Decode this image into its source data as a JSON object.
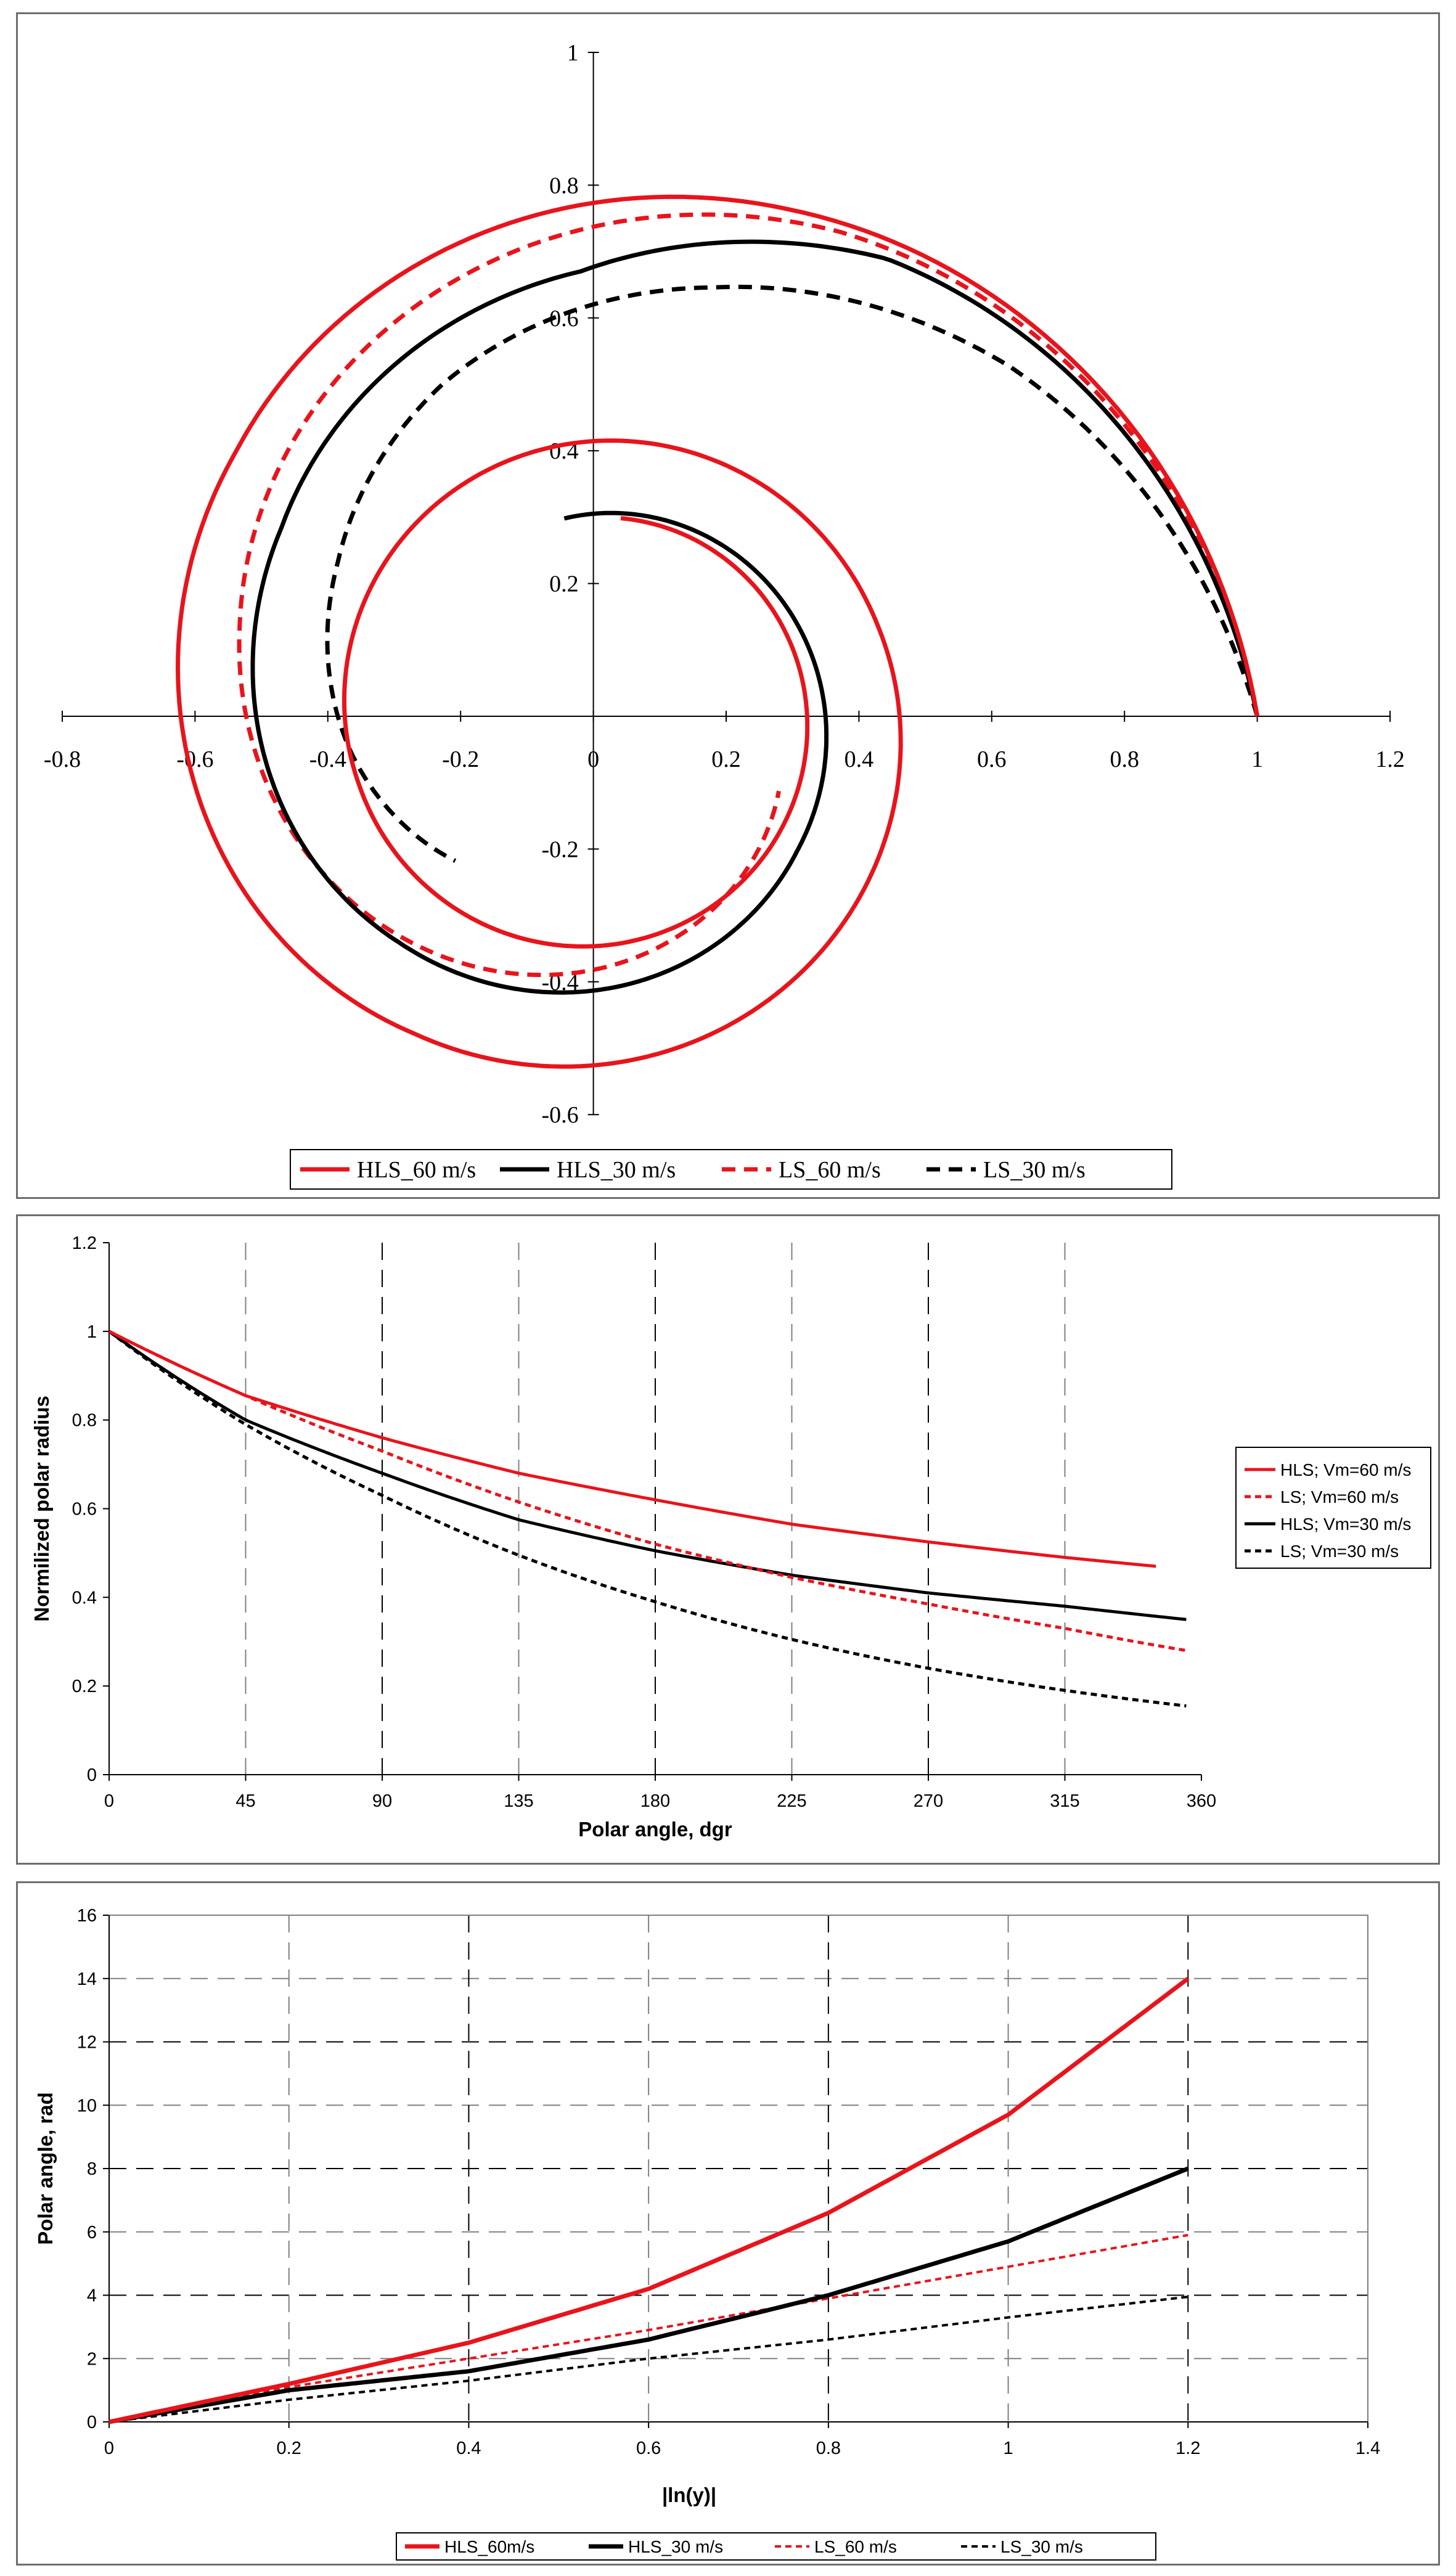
{
  "chart_data": [
    {
      "type": "line",
      "title": "",
      "xlabel": "",
      "ylabel": "",
      "xlim": [
        -0.8,
        1.2
      ],
      "ylim": [
        -0.6,
        1.0
      ],
      "x_ticks": [
        "-0.8",
        "-0.6",
        "-0.4",
        "-0.2",
        "0",
        "0.2",
        "0.4",
        "0.6",
        "0.8",
        "1",
        "1.2"
      ],
      "y_ticks": [
        "-0.6",
        "-0.4",
        "-0.2",
        "0",
        "0.2",
        "0.4",
        "0.6",
        "0.8",
        "1"
      ],
      "legend_position": "bottom",
      "series": [
        {
          "name": "HLS_60 m/s",
          "color": "#e8141c",
          "dash": "solid",
          "width": "thick",
          "theta_end_rad": 14.0,
          "ln_end": 1.2
        },
        {
          "name": "HLS_30 m/s",
          "color": "#000000",
          "dash": "solid",
          "width": "thick",
          "theta_end_rad": 8.0,
          "ln_end": 1.2
        },
        {
          "name": "LS_60 m/s",
          "color": "#e8141c",
          "dash": "dashed",
          "width": "thick",
          "theta_end_rad": 5.9,
          "ln_end": 1.2
        },
        {
          "name": "LS_30 m/s",
          "color": "#000000",
          "dash": "dashed",
          "width": "thick",
          "theta_end_rad": 3.95,
          "ln_end": 1.2
        }
      ]
    },
    {
      "type": "line",
      "title": "",
      "xlabel": "Polar angle, dgr",
      "ylabel": "Normilized polar radius",
      "xlim": [
        0,
        360
      ],
      "ylim": [
        0,
        1.2
      ],
      "x_ticks": [
        "0",
        "45",
        "90",
        "135",
        "180",
        "225",
        "270",
        "315",
        "360"
      ],
      "y_ticks": [
        "0",
        "0.2",
        "0.4",
        "0.6",
        "0.8",
        "1",
        "1.2"
      ],
      "legend_position": "right",
      "series": [
        {
          "name": "HLS; Vm=60 m/s",
          "color": "#e8141c",
          "dash": "solid",
          "points": [
            [
              0,
              1
            ],
            [
              45,
              0.855
            ],
            [
              90,
              0.76
            ],
            [
              135,
              0.68
            ],
            [
              180,
              0.62
            ],
            [
              225,
              0.565
            ],
            [
              270,
              0.525
            ],
            [
              315,
              0.49
            ],
            [
              345,
              0.47
            ]
          ]
        },
        {
          "name": "LS; Vm=60 m/s",
          "color": "#e8141c",
          "dash": "dashed",
          "points": [
            [
              0,
              1
            ],
            [
              45,
              0.855
            ],
            [
              90,
              0.73
            ],
            [
              135,
              0.615
            ],
            [
              180,
              0.52
            ],
            [
              225,
              0.445
            ],
            [
              270,
              0.385
            ],
            [
              315,
              0.33
            ],
            [
              355,
              0.28
            ]
          ]
        },
        {
          "name": "HLS; Vm=30 m/s",
          "color": "#000000",
          "dash": "solid",
          "points": [
            [
              0,
              1
            ],
            [
              45,
              0.8
            ],
            [
              90,
              0.68
            ],
            [
              135,
              0.575
            ],
            [
              180,
              0.505
            ],
            [
              225,
              0.45
            ],
            [
              270,
              0.41
            ],
            [
              315,
              0.38
            ],
            [
              355,
              0.35
            ]
          ]
        },
        {
          "name": "LS; Vm=30 m/s",
          "color": "#000000",
          "dash": "dashed",
          "points": [
            [
              0,
              1
            ],
            [
              45,
              0.79
            ],
            [
              90,
              0.63
            ],
            [
              135,
              0.495
            ],
            [
              180,
              0.39
            ],
            [
              225,
              0.305
            ],
            [
              270,
              0.24
            ],
            [
              315,
              0.19
            ],
            [
              355,
              0.155
            ]
          ]
        }
      ]
    },
    {
      "type": "line",
      "title": "",
      "xlabel": "|ln(y)|",
      "ylabel": "Polar angle, rad",
      "xlim": [
        0,
        1.4
      ],
      "ylim": [
        0,
        16
      ],
      "x_ticks": [
        "0",
        "0.2",
        "0.4",
        "0.6",
        "0.8",
        "1",
        "1.2",
        "1.4"
      ],
      "y_ticks": [
        "0",
        "2",
        "4",
        "6",
        "8",
        "10",
        "12",
        "14",
        "16"
      ],
      "legend_position": "bottom",
      "series": [
        {
          "name": "HLS_60m/s",
          "color": "#e8141c",
          "dash": "solid",
          "points": [
            [
              0,
              0
            ],
            [
              0.2,
              1.2
            ],
            [
              0.4,
              2.5
            ],
            [
              0.6,
              4.2
            ],
            [
              0.8,
              6.6
            ],
            [
              1.0,
              9.7
            ],
            [
              1.2,
              14.0
            ]
          ]
        },
        {
          "name": "HLS_30 m/s",
          "color": "#000000",
          "dash": "solid",
          "points": [
            [
              0,
              0
            ],
            [
              0.2,
              1.0
            ],
            [
              0.4,
              1.6
            ],
            [
              0.6,
              2.6
            ],
            [
              0.8,
              4.0
            ],
            [
              1.0,
              5.7
            ],
            [
              1.2,
              8.0
            ]
          ]
        },
        {
          "name": "LS_60 m/s",
          "color": "#e8141c",
          "dash": "dashed",
          "points": [
            [
              0,
              0
            ],
            [
              0.2,
              1.1
            ],
            [
              0.4,
              2.0
            ],
            [
              0.6,
              2.9
            ],
            [
              0.8,
              3.9
            ],
            [
              1.0,
              4.9
            ],
            [
              1.2,
              5.9
            ]
          ]
        },
        {
          "name": "LS_30 m/s",
          "color": "#000000",
          "dash": "dashed",
          "points": [
            [
              0,
              0
            ],
            [
              0.2,
              0.7
            ],
            [
              0.4,
              1.3
            ],
            [
              0.6,
              2.0
            ],
            [
              0.8,
              2.6
            ],
            [
              1.0,
              3.3
            ],
            [
              1.2,
              3.95
            ]
          ]
        }
      ]
    }
  ]
}
